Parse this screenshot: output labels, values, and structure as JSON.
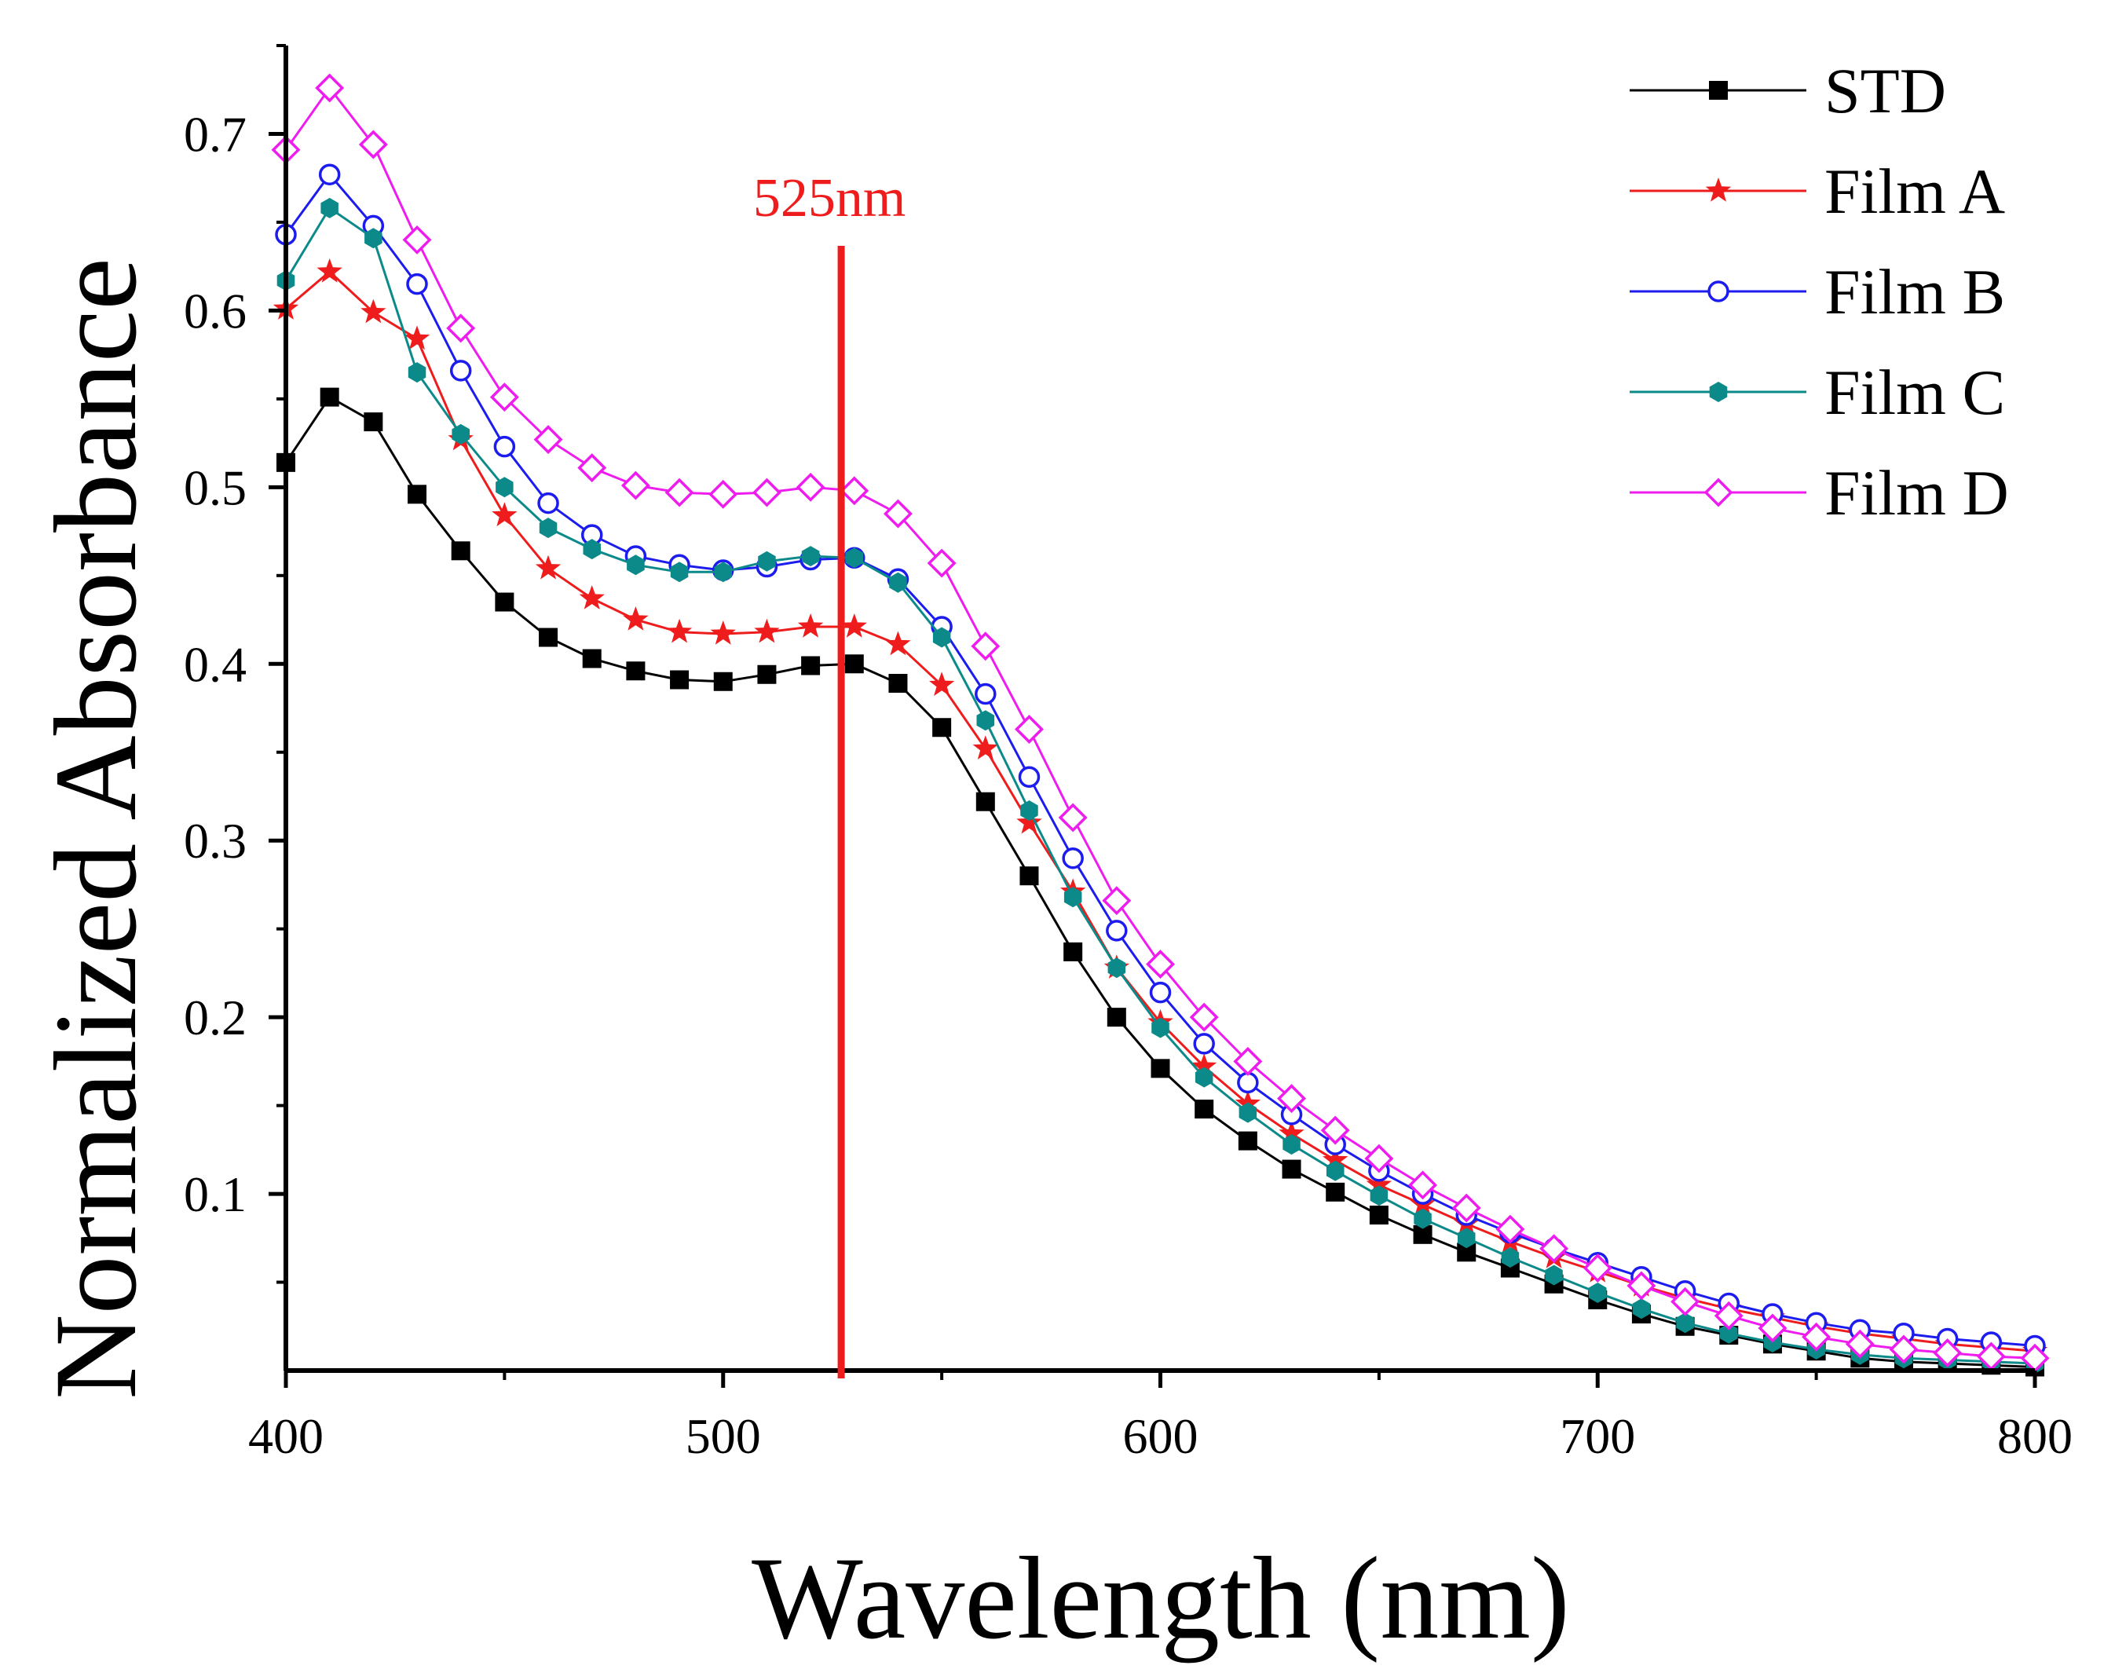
{
  "chart_data": {
    "type": "line",
    "title": "",
    "xlabel": "Wavelength (nm)",
    "ylabel": "Normalized Absorbance",
    "xlim": [
      400,
      800
    ],
    "ylim": [
      0.0,
      0.75
    ],
    "xticks": [
      "400",
      "500",
      "600",
      "700",
      "800"
    ],
    "yticks": [
      "0.1",
      "0.2",
      "0.3",
      "0.4",
      "0.5",
      "0.6",
      "0.7"
    ],
    "grid": false,
    "legend_position": "top-right",
    "annotation": {
      "label": "525nm",
      "x": 527,
      "color": "#ee1c1c"
    },
    "x": [
      400,
      410,
      420,
      430,
      440,
      450,
      460,
      470,
      480,
      490,
      500,
      510,
      520,
      530,
      540,
      550,
      560,
      570,
      580,
      590,
      600,
      610,
      620,
      630,
      640,
      650,
      660,
      670,
      680,
      690,
      700,
      710,
      720,
      730,
      740,
      750,
      760,
      770,
      780,
      790,
      800
    ],
    "series": [
      {
        "name": "STD",
        "color": "#000000",
        "marker": "square",
        "values": [
          0.514,
          0.551,
          0.537,
          0.496,
          0.464,
          0.435,
          0.415,
          0.403,
          0.396,
          0.391,
          0.39,
          0.394,
          0.399,
          0.4,
          0.389,
          0.364,
          0.322,
          0.28,
          0.237,
          0.2,
          0.171,
          0.148,
          0.13,
          0.114,
          0.101,
          0.088,
          0.077,
          0.067,
          0.058,
          0.049,
          0.04,
          0.032,
          0.025,
          0.02,
          0.015,
          0.011,
          0.007,
          0.005,
          0.004,
          0.003,
          0.002
        ]
      },
      {
        "name": "Film A",
        "color": "#ee1c1c",
        "marker": "star",
        "values": [
          0.601,
          0.622,
          0.599,
          0.584,
          0.527,
          0.484,
          0.454,
          0.437,
          0.425,
          0.418,
          0.417,
          0.418,
          0.421,
          0.421,
          0.411,
          0.388,
          0.352,
          0.31,
          0.271,
          0.228,
          0.197,
          0.172,
          0.151,
          0.134,
          0.119,
          0.105,
          0.094,
          0.083,
          0.073,
          0.064,
          0.056,
          0.048,
          0.041,
          0.035,
          0.03,
          0.025,
          0.021,
          0.018,
          0.015,
          0.013,
          0.011
        ]
      },
      {
        "name": "Film B",
        "color": "#1c1cee",
        "marker": "circle",
        "values": [
          0.643,
          0.677,
          0.648,
          0.615,
          0.566,
          0.523,
          0.491,
          0.473,
          0.461,
          0.456,
          0.453,
          0.455,
          0.459,
          0.46,
          0.448,
          0.421,
          0.383,
          0.336,
          0.29,
          0.249,
          0.214,
          0.185,
          0.163,
          0.145,
          0.128,
          0.113,
          0.1,
          0.088,
          0.078,
          0.069,
          0.061,
          0.053,
          0.045,
          0.038,
          0.032,
          0.027,
          0.023,
          0.021,
          0.018,
          0.016,
          0.014
        ]
      },
      {
        "name": "Film C",
        "color": "#0c8a8a",
        "marker": "hexagon",
        "values": [
          0.617,
          0.658,
          0.641,
          0.565,
          0.53,
          0.5,
          0.477,
          0.465,
          0.456,
          0.452,
          0.452,
          0.458,
          0.461,
          0.46,
          0.446,
          0.415,
          0.368,
          0.317,
          0.268,
          0.228,
          0.194,
          0.166,
          0.146,
          0.128,
          0.113,
          0.099,
          0.086,
          0.075,
          0.064,
          0.054,
          0.044,
          0.035,
          0.027,
          0.021,
          0.016,
          0.012,
          0.009,
          0.007,
          0.006,
          0.005,
          0.004
        ]
      },
      {
        "name": "Film D",
        "color": "#ee1cee",
        "marker": "diamond",
        "values": [
          0.691,
          0.726,
          0.694,
          0.64,
          0.59,
          0.551,
          0.527,
          0.511,
          0.501,
          0.497,
          0.496,
          0.497,
          0.5,
          0.498,
          0.485,
          0.457,
          0.41,
          0.363,
          0.313,
          0.266,
          0.23,
          0.2,
          0.175,
          0.154,
          0.136,
          0.12,
          0.105,
          0.092,
          0.08,
          0.069,
          0.058,
          0.048,
          0.039,
          0.031,
          0.024,
          0.019,
          0.015,
          0.012,
          0.01,
          0.008,
          0.007
        ]
      }
    ]
  }
}
